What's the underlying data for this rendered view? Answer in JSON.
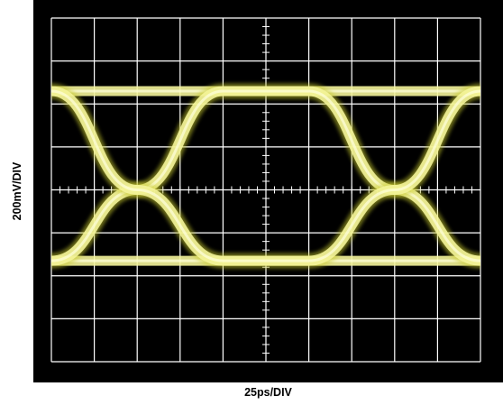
{
  "chart_data": {
    "type": "eye-diagram",
    "xlabel": "25ps/DIV",
    "ylabel": "200mV/DIV",
    "divisions": {
      "x": 10,
      "y": 8
    },
    "x_per_div": {
      "value": 25,
      "unit": "ps"
    },
    "y_per_div": {
      "value": 200,
      "unit": "mV"
    },
    "screen_color": "#000000",
    "grid_color": "#ffffff",
    "trace_color": "#f4f49a",
    "trace_glow_color": "#c9cb2e",
    "series": [
      {
        "name": "",
        "kind": "high-level",
        "x": [
          0,
          10
        ],
        "y": [
          6.3,
          6.3
        ]
      },
      {
        "name": "",
        "kind": "low-level",
        "x": [
          0,
          10
        ],
        "y": [
          2.35,
          2.35
        ]
      },
      {
        "name": "",
        "kind": "rising",
        "x": [
          0,
          2,
          4,
          6,
          8,
          10
        ],
        "y": [
          2.35,
          4.0,
          6.3,
          6.3,
          4.0,
          2.35
        ]
      },
      {
        "name": "",
        "kind": "falling",
        "x": [
          0,
          2,
          4,
          6,
          8,
          10
        ],
        "y": [
          6.3,
          4.0,
          2.35,
          2.35,
          4.0,
          6.3
        ]
      }
    ],
    "crossings_x": [
      2,
      8
    ],
    "xlim": [
      0,
      10
    ],
    "ylim": [
      0,
      8
    ],
    "grid": true
  }
}
